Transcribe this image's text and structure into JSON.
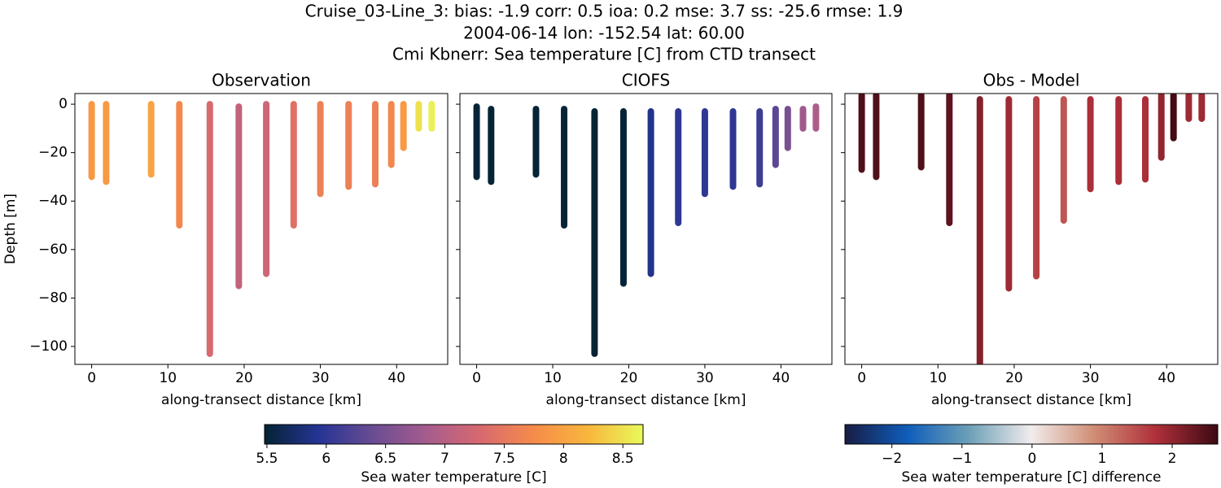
{
  "figure": {
    "title": [
      "Cruise_03-Line_3: bias: -1.9  corr: 0.5  ioa: 0.2  mse: 3.7  ss: -25.6  rmse: 1.9",
      "2004-06-14 lon: -152.54 lat: 60.00",
      "Cmi Kbnerr: Sea temperature [C] from CTD transect"
    ]
  },
  "colorbars": [
    {
      "label": "Sea water temperature [C]",
      "clim": [
        5.48,
        8.67
      ],
      "ticks": [
        5.5,
        6.0,
        6.5,
        7.0,
        7.5,
        8.0,
        8.5
      ],
      "colormap": [
        "#042333",
        "#253494",
        "#6a4c93",
        "#a65c8d",
        "#d8696f",
        "#f68c49",
        "#f9b73d",
        "#e8fa5b"
      ]
    },
    {
      "label": "Sea water temperature [C] difference",
      "clim": [
        -2.67,
        2.65
      ],
      "ticks": [
        {
          "value": -2,
          "label": "−2"
        },
        {
          "value": -1,
          "label": "−1"
        },
        0,
        1,
        2
      ],
      "colormap": [
        "#181c43",
        "#0f5dbb",
        "#6da0b7",
        "#f1ecec",
        "#d08e75",
        "#b0303b",
        "#3c0912"
      ]
    }
  ],
  "chart_data": [
    {
      "type": "profile",
      "title": "Observation",
      "x_label": "along-transect distance [km]",
      "y_label": "Depth [m]",
      "colorbar": 0,
      "x": [
        0,
        1.9,
        7.8,
        11.5,
        15.5,
        19.3,
        22.9,
        26.5,
        30.0,
        33.7,
        37.2,
        39.3,
        40.9,
        42.9,
        44.6
      ],
      "top": [
        0,
        0,
        0,
        0,
        0,
        -1,
        0,
        0,
        0,
        0,
        0,
        0,
        0,
        0,
        0
      ],
      "bottom": [
        -30,
        -32,
        -29,
        -50,
        -103,
        -75,
        -70,
        -50,
        -37,
        -34,
        -33,
        -25,
        -18,
        -10,
        -10
      ],
      "values": [
        7.9,
        7.9,
        8.0,
        7.7,
        7.3,
        7.1,
        7.2,
        7.4,
        7.6,
        7.6,
        7.6,
        7.7,
        7.9,
        8.5,
        8.6
      ],
      "xlim": [
        -2.2,
        46.7
      ],
      "ylim": [
        -107.4,
        4.4
      ],
      "xticks": [
        0,
        10,
        20,
        30,
        40
      ],
      "yticks": [
        0,
        {
          "value": -20,
          "label": "−20"
        },
        {
          "value": -40,
          "label": "−40"
        },
        {
          "value": -60,
          "label": "−60"
        },
        {
          "value": -80,
          "label": "−80"
        },
        {
          "value": -100,
          "label": "−100"
        }
      ],
      "ytick_labels": true
    },
    {
      "type": "profile",
      "title": "CIOFS",
      "x_label": "along-transect distance [km]",
      "colorbar": 0,
      "x": [
        0,
        1.9,
        7.8,
        11.5,
        15.5,
        19.3,
        22.9,
        26.5,
        30.0,
        33.7,
        37.2,
        39.3,
        40.9,
        42.9,
        44.6
      ],
      "top": [
        -1,
        -2,
        -2,
        -2,
        -3,
        -3,
        -3,
        -3,
        -3,
        -3,
        -3,
        -2,
        -2,
        -2,
        -1
      ],
      "bottom": [
        -30,
        -32,
        -29,
        -50,
        -103,
        -74,
        -70,
        -49,
        -37,
        -34,
        -33,
        -25,
        -18,
        -10,
        -10
      ],
      "values": [
        5.5,
        5.5,
        5.5,
        5.5,
        5.45,
        5.5,
        5.9,
        6.0,
        6.0,
        6.0,
        6.1,
        6.3,
        6.5,
        6.8,
        6.9
      ],
      "xlim": [
        -2.2,
        46.7
      ],
      "ylim": [
        -107.4,
        4.4
      ],
      "xticks": [
        0,
        10,
        20,
        30,
        40
      ],
      "yticks": [
        0,
        -20,
        -40,
        -60,
        -80,
        -100
      ],
      "ytick_labels": false
    },
    {
      "type": "profile",
      "title": "Obs - Model",
      "x_label": "along-transect distance [km]",
      "colorbar": 1,
      "x": [
        0,
        1.9,
        7.8,
        11.5,
        15.5,
        19.3,
        22.9,
        26.5,
        30.0,
        33.7,
        37.2,
        39.3,
        40.9,
        42.9,
        44.6
      ],
      "top": [
        3.7,
        3.7,
        3.7,
        3.7,
        2,
        2,
        2,
        2,
        2,
        2,
        2,
        3.7,
        3.7,
        3.7,
        3.7
      ],
      "bottom": [
        -27,
        -30,
        -26,
        -49,
        -110,
        -76,
        -71,
        -48,
        -35,
        -32,
        -31,
        -22,
        -14,
        -6,
        -6
      ],
      "values": [
        2.5,
        2.5,
        2.5,
        2.4,
        2.1,
        1.9,
        1.6,
        1.4,
        1.8,
        1.8,
        1.8,
        2.0,
        2.6,
        1.9,
        1.9
      ],
      "xlim": [
        -2.2,
        46.7
      ],
      "ylim": [
        -107.4,
        4.4
      ],
      "xticks": [
        0,
        10,
        20,
        30,
        40
      ],
      "yticks": [
        0,
        -20,
        -40,
        -60,
        -80,
        -100
      ],
      "ytick_labels": false
    }
  ]
}
